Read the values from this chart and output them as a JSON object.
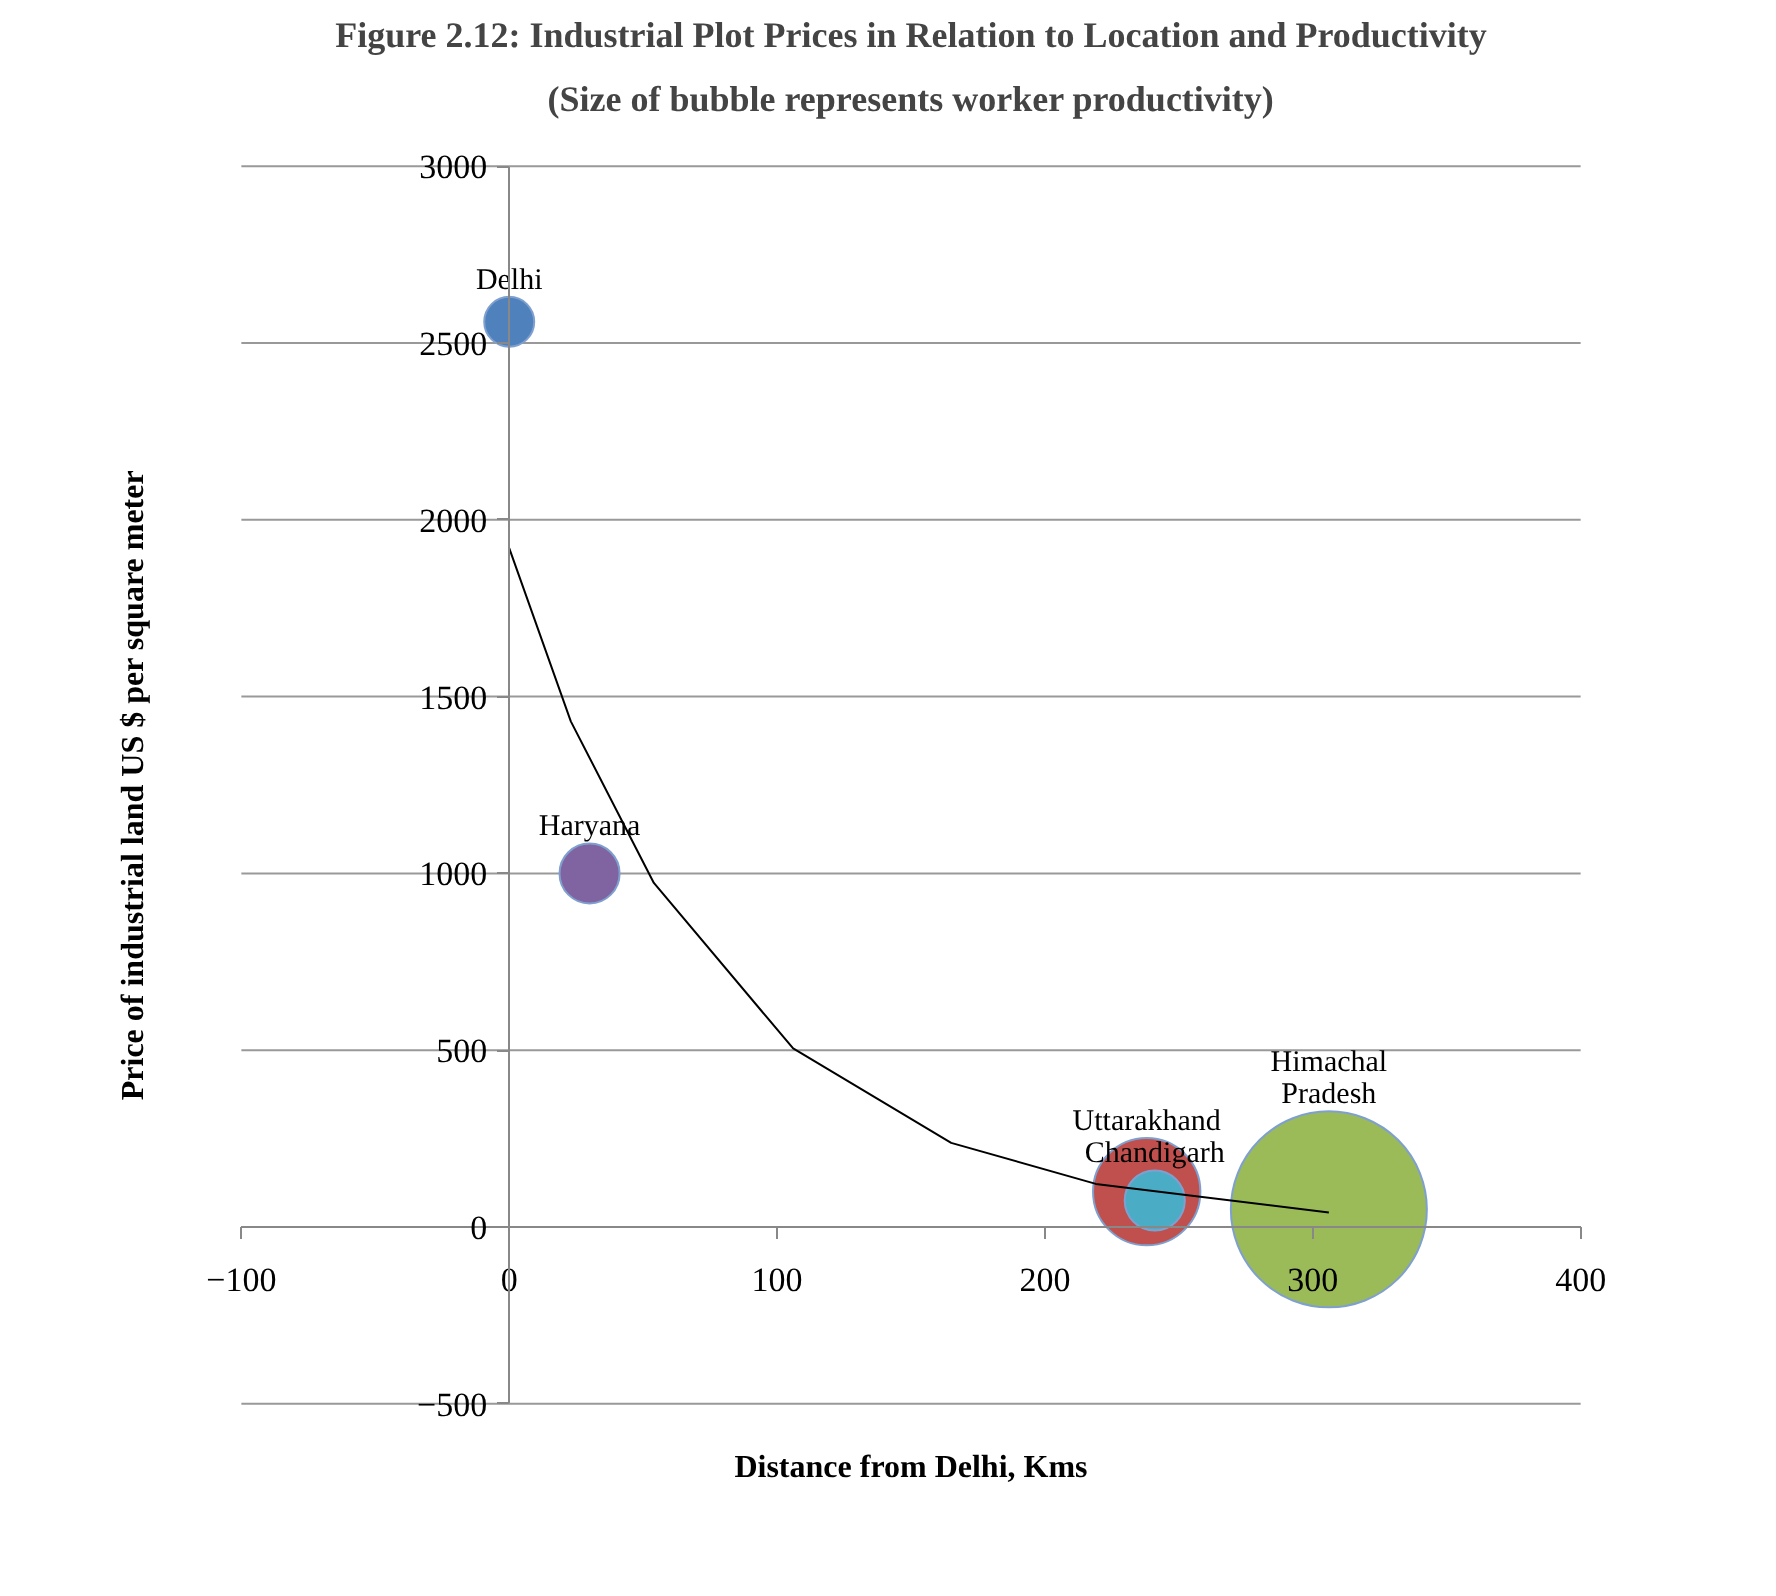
{
  "chart_data": {
    "type": "bubble",
    "title": "Figure 2.12: Industrial Plot Prices in Relation to Location and Productivity",
    "subtitle": "(Size of bubble represents worker productivity)",
    "xlabel": "Distance from Delhi, Kms",
    "ylabel": "Price of industrial land US $ per square meter",
    "xlim": [
      -100,
      400
    ],
    "xticks": [
      -100,
      0,
      100,
      200,
      300,
      400
    ],
    "ylim": [
      -500,
      3000
    ],
    "yticks": [
      -500,
      0,
      500,
      1000,
      1500,
      2000,
      2500,
      3000
    ],
    "grid": "y",
    "series": [
      {
        "name": "Delhi",
        "color": "#4f81bd",
        "x": [
          0
        ],
        "values": [
          2560
        ],
        "sizes": [
          0.065
        ]
      },
      {
        "name": "Haryana",
        "color": "#8064a2",
        "x": [
          30
        ],
        "values": [
          1000
        ],
        "sizes": [
          0.094
        ]
      },
      {
        "name": "Uttarakhand",
        "color": "#c0504d",
        "x": [
          238
        ],
        "values": [
          100
        ],
        "sizes": [
          0.3
        ]
      },
      {
        "name": "Chandigarh",
        "color": "#4bacc6",
        "x": [
          241
        ],
        "values": [
          75
        ],
        "sizes": [
          0.094
        ]
      },
      {
        "name": "Himachal\nPradesh",
        "color": "#9bbb59",
        "x": [
          306
        ],
        "values": [
          50
        ],
        "sizes": [
          1
        ]
      },
      {
        "type": "line",
        "color": "#000000",
        "x": [
          0,
          23,
          54,
          106,
          165,
          219,
          306
        ],
        "values": [
          1920,
          1430,
          973,
          505,
          238,
          122,
          41
        ]
      }
    ]
  }
}
